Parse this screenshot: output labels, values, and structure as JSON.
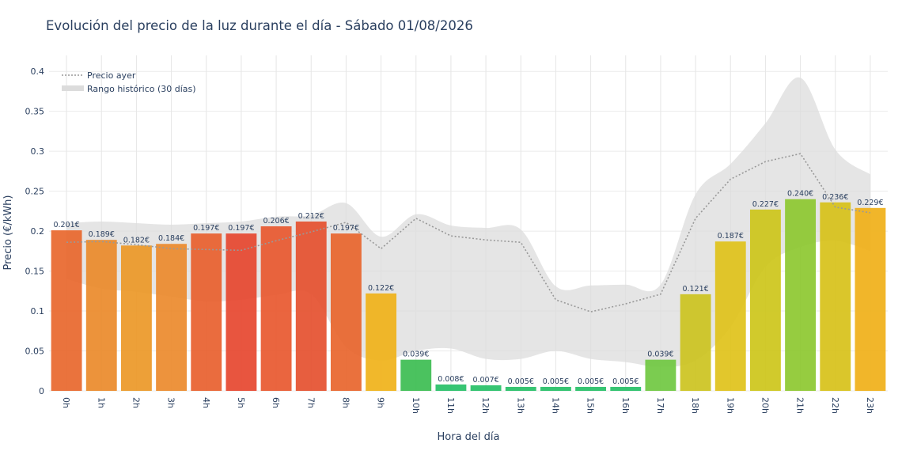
{
  "chart_data": {
    "type": "bar",
    "title": "Evolución del precio de la luz durante el día - Sábado 01/08/2026",
    "xlabel": "Hora del día",
    "ylabel": "Precio (€/kWh)",
    "ylim": [
      0,
      0.42
    ],
    "y_ticks": [
      "0",
      "0.05",
      "0.1",
      "0.15",
      "0.2",
      "0.25",
      "0.3",
      "0.35",
      "0.4"
    ],
    "y_tick_values": [
      0,
      0.05,
      0.1,
      0.15,
      0.2,
      0.25,
      0.3,
      0.35,
      0.4
    ],
    "grid": true,
    "legend_position": "top-left",
    "categories": [
      "0h",
      "1h",
      "2h",
      "3h",
      "4h",
      "5h",
      "6h",
      "7h",
      "8h",
      "9h",
      "10h",
      "11h",
      "12h",
      "13h",
      "14h",
      "15h",
      "16h",
      "17h",
      "18h",
      "19h",
      "20h",
      "21h",
      "22h",
      "23h"
    ],
    "values": [
      0.201,
      0.189,
      0.182,
      0.184,
      0.197,
      0.197,
      0.206,
      0.212,
      0.197,
      0.122,
      0.039,
      0.008,
      0.007,
      0.005,
      0.005,
      0.005,
      0.005,
      0.039,
      0.121,
      0.187,
      0.227,
      0.24,
      0.236,
      0.229
    ],
    "value_labels": [
      "0.201€",
      "0.189€",
      "0.182€",
      "0.184€",
      "0.197€",
      "0.197€",
      "0.206€",
      "0.212€",
      "0.197€",
      "0.122€",
      "0.039€",
      "0.008€",
      "0.007€",
      "0.005€",
      "0.005€",
      "0.005€",
      "0.005€",
      "0.039€",
      "0.121€",
      "0.187€",
      "0.227€",
      "0.240€",
      "0.236€",
      "0.229€"
    ],
    "bar_colors": [
      "#e8672c",
      "#ea8a2a",
      "#eb9827",
      "#ec8a2c",
      "#e8602e",
      "#e6462f",
      "#e8582f",
      "#e5502f",
      "#e8652c",
      "#f0b219",
      "#3cbd51",
      "#26c067",
      "#26c067",
      "#26c067",
      "#26c067",
      "#26c067",
      "#26c067",
      "#70c841",
      "#ccc31f",
      "#e0c21a",
      "#cdc61a",
      "#8dc830",
      "#d7c119",
      "#f0b018"
    ],
    "series": [
      {
        "name": "Precio ayer",
        "type": "line",
        "style": "dotted",
        "color": "#999999",
        "values": [
          0.186,
          0.187,
          0.183,
          0.178,
          0.177,
          0.176,
          0.188,
          0.199,
          0.211,
          0.178,
          0.216,
          0.194,
          0.189,
          0.186,
          0.114,
          0.099,
          0.109,
          0.121,
          0.216,
          0.265,
          0.287,
          0.297,
          0.23,
          0.223
        ]
      },
      {
        "name": "Rango histórico (30 días)",
        "type": "area",
        "color": "#dcdcdc",
        "upper": [
          0.21,
          0.212,
          0.21,
          0.208,
          0.21,
          0.212,
          0.218,
          0.22,
          0.235,
          0.193,
          0.221,
          0.207,
          0.204,
          0.202,
          0.131,
          0.132,
          0.133,
          0.133,
          0.246,
          0.284,
          0.335,
          0.392,
          0.302,
          0.271
        ],
        "lower": [
          0.14,
          0.128,
          0.124,
          0.118,
          0.112,
          0.114,
          0.12,
          0.121,
          0.055,
          0.038,
          0.05,
          0.053,
          0.04,
          0.04,
          0.05,
          0.04,
          0.036,
          0.03,
          0.038,
          0.08,
          0.155,
          0.18,
          0.188,
          0.175
        ]
      }
    ]
  }
}
